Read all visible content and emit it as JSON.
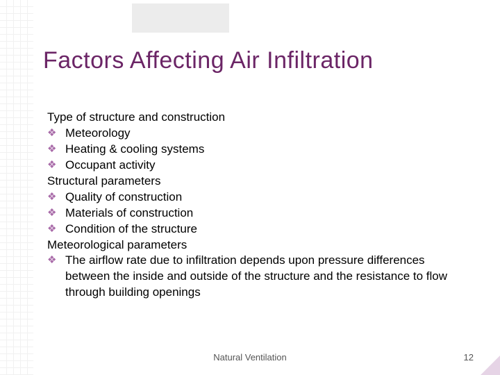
{
  "slide": {
    "title": "Factors Affecting Air Infiltration",
    "title_color": "#6b2566",
    "title_fontsize": 34,
    "body_fontsize": 17,
    "bullet_glyph": "❖",
    "bullet_color": "#a86aa8",
    "background_color": "#ffffff",
    "grid_color": "#e8e8e8",
    "top_bar_color": "#dcdcdc",
    "accent_color": "#d6b8d6",
    "sections": [
      {
        "heading": "Type of structure and construction",
        "items": [
          "Meteorology",
          "Heating & cooling systems",
          "Occupant activity"
        ]
      },
      {
        "heading": "Structural parameters",
        "items": [
          "Quality of construction",
          "Materials of construction",
          "Condition of the structure"
        ]
      },
      {
        "heading": "Meteorological parameters",
        "items": [
          "The airflow rate due to infiltration depends upon pressure differences between the inside and outside of the structure and the resistance to flow through building openings"
        ]
      }
    ],
    "footer": "Natural Ventilation",
    "page_number": "12"
  }
}
